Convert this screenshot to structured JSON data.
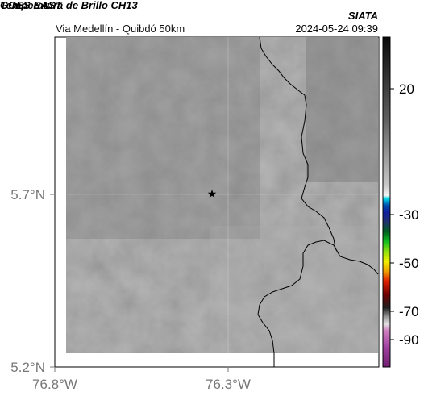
{
  "header": {
    "satellite": "GOES-EAST",
    "product": "Temperatura de Brillo CH13",
    "route": "Via Medellín - Quibdó 50km",
    "organization": "SIATA",
    "datetime": "2024-05-24 09:39"
  },
  "map": {
    "lon_ticks": [
      "76.8°W",
      "76.3°W"
    ],
    "lat_ticks": [
      "5.7°N",
      "5.2°N"
    ],
    "marker": "star-icon"
  },
  "colorbar": {
    "tick_labels": [
      "20",
      "-30",
      "-50",
      "-70",
      "-90"
    ]
  }
}
